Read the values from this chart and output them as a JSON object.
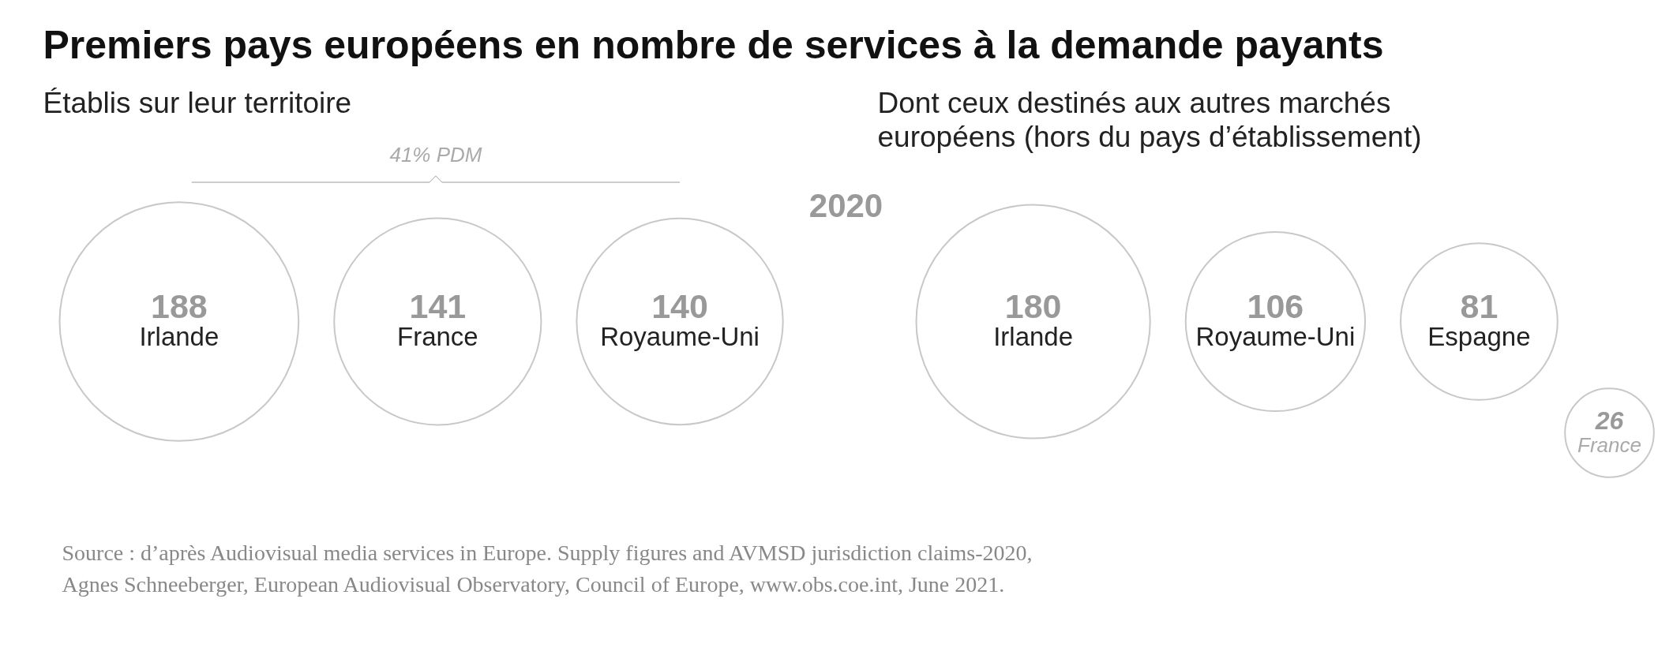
{
  "chart_data": [
    {
      "type": "other",
      "title": "Premiers pays européens en nombre de services à la demande payants",
      "subtitle": "Établis sur leur territoire",
      "categories": [
        "Irlande",
        "France",
        "Royaume-Uni"
      ],
      "values": [
        188,
        141,
        140
      ],
      "data_labels": true,
      "color": "#c8c8c8",
      "annotations": [
        "41% PDM",
        "2020"
      ]
    },
    {
      "type": "other",
      "subtitle": "Dont ceux destinés aux autres marchés européens (hors du pays d’établissement)",
      "categories": [
        "Irlande",
        "Royaume-Uni",
        "Espagne",
        "France"
      ],
      "values": [
        180,
        106,
        81,
        26
      ],
      "data_labels": true,
      "color": "#c8c8c8",
      "annotations": [
        "Source : d’après Audiovisual media services in Europe. Supply figures and AVMSD jurisdiction claims-2020, Agnes Schneeberger, European Audiovisual Observatory, Council of Europe, www.obs.coe.int, June 2021."
      ]
    }
  ]
}
